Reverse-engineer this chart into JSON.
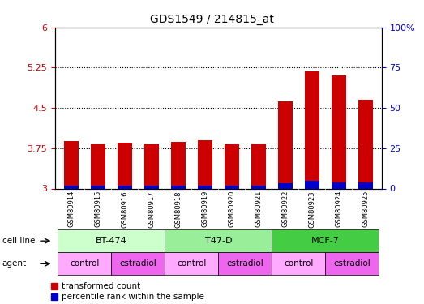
{
  "title": "GDS1549 / 214815_at",
  "samples": [
    "GSM80914",
    "GSM80915",
    "GSM80916",
    "GSM80917",
    "GSM80918",
    "GSM80919",
    "GSM80920",
    "GSM80921",
    "GSM80922",
    "GSM80923",
    "GSM80924",
    "GSM80925"
  ],
  "red_values": [
    3.88,
    3.82,
    3.85,
    3.83,
    3.87,
    3.9,
    3.82,
    3.82,
    4.63,
    5.18,
    5.1,
    4.65
  ],
  "blue_values": [
    3.05,
    3.05,
    3.05,
    3.05,
    3.05,
    3.05,
    3.05,
    3.05,
    3.1,
    3.15,
    3.12,
    3.12
  ],
  "base": 3.0,
  "ylim_left": [
    3.0,
    6.0
  ],
  "ylim_right": [
    0,
    100
  ],
  "yticks_left": [
    3.0,
    3.75,
    4.5,
    5.25,
    6.0
  ],
  "ytick_labels_left": [
    "3",
    "3.75",
    "4.5",
    "5.25",
    "6"
  ],
  "yticks_right": [
    0,
    25,
    50,
    75,
    100
  ],
  "ytick_labels_right": [
    "0",
    "25",
    "50",
    "75",
    "100%"
  ],
  "hlines": [
    3.75,
    4.5,
    5.25
  ],
  "cell_line_groups": [
    {
      "label": "BT-474",
      "start": 0,
      "end": 3,
      "color": "#ccffcc"
    },
    {
      "label": "T47-D",
      "start": 4,
      "end": 7,
      "color": "#99ee99"
    },
    {
      "label": "MCF-7",
      "start": 8,
      "end": 11,
      "color": "#44cc44"
    }
  ],
  "agent_groups": [
    {
      "label": "control",
      "start": 0,
      "end": 1,
      "color": "#ffaaff"
    },
    {
      "label": "estradiol",
      "start": 2,
      "end": 3,
      "color": "#ee66ee"
    },
    {
      "label": "control",
      "start": 4,
      "end": 5,
      "color": "#ffaaff"
    },
    {
      "label": "estradiol",
      "start": 6,
      "end": 7,
      "color": "#ee66ee"
    },
    {
      "label": "control",
      "start": 8,
      "end": 9,
      "color": "#ffaaff"
    },
    {
      "label": "estradiol",
      "start": 10,
      "end": 11,
      "color": "#ee66ee"
    }
  ],
  "bar_color_red": "#cc0000",
  "bar_color_blue": "#0000cc",
  "bar_width": 0.55,
  "bg_color": "#ffffff",
  "left_axis_color": "#cc0000",
  "right_axis_color": "#0000cc",
  "xtick_bg": "#cccccc"
}
